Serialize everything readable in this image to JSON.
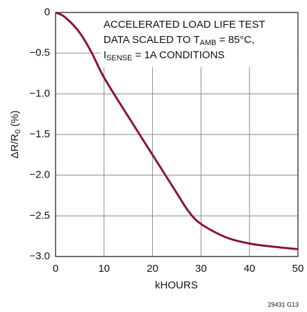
{
  "chart_data": {
    "type": "line",
    "annotation": {
      "line1": "ACCELERATED LOAD LIFE TEST",
      "line2": {
        "text": "DATA SCALED TO T",
        "sub": "AMB",
        "rest": " = 85°C,"
      },
      "line3": {
        "text": "I",
        "sub": "SENSE",
        "rest": " = 1A CONDITIONS"
      }
    },
    "x_label": "kHOURS",
    "y_label": {
      "text": "ΔR/R",
      "sub": "0",
      "rest": " (%)"
    },
    "footnote": "29431 G13",
    "x": [
      0,
      2,
      5,
      7.5,
      10,
      15,
      20,
      25,
      27.5,
      30,
      35,
      40,
      45,
      50
    ],
    "values": [
      0,
      -0.06,
      -0.25,
      -0.5,
      -0.8,
      -1.28,
      -1.75,
      -2.22,
      -2.45,
      -2.6,
      -2.76,
      -2.84,
      -2.88,
      -2.91
    ],
    "color": "#8c1238",
    "xlim": [
      0,
      50
    ],
    "xticks": [
      0,
      10,
      20,
      30,
      40,
      50
    ],
    "ylim": [
      -3.0,
      0
    ],
    "yticks": [
      {
        "value": -3.0,
        "label": "−3.0"
      },
      {
        "value": -2.5,
        "label": "−2.5"
      },
      {
        "value": -2.0,
        "label": "−2.0"
      },
      {
        "value": -1.5,
        "label": "−1.5"
      },
      {
        "value": -1.0,
        "label": "−1.0"
      },
      {
        "value": -0.5,
        "label": "−0.5"
      },
      0
    ],
    "grid": true
  }
}
